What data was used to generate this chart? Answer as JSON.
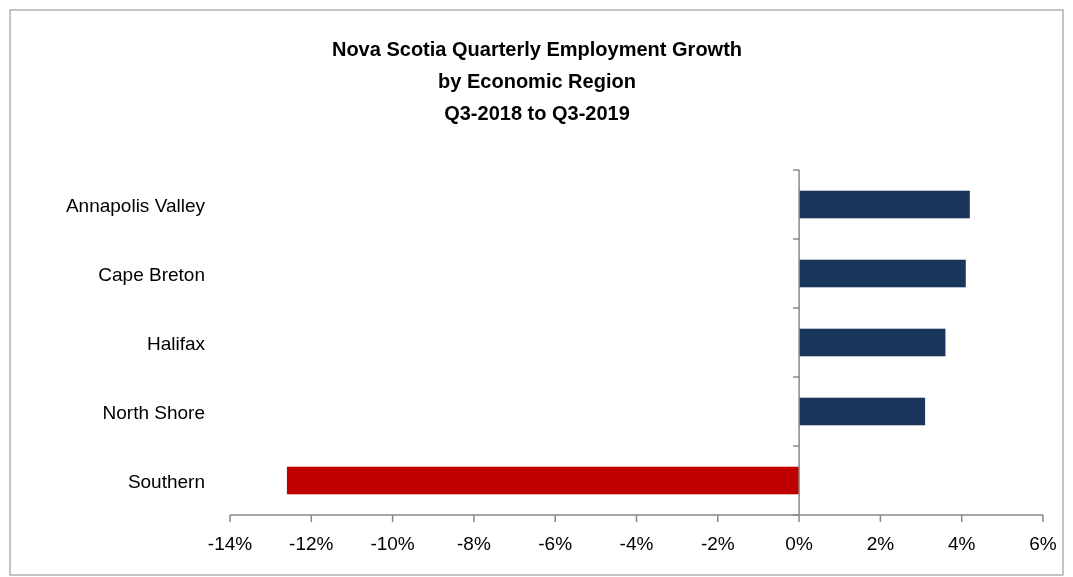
{
  "chart_data": {
    "type": "bar",
    "orientation": "horizontal",
    "title": "Nova Scotia Quarterly Employment Growth\nby Economic Region\nQ3-2018 to Q3-2019",
    "categories": [
      "Annapolis Valley",
      "Cape Breton",
      "Halifax",
      "North Shore",
      "Southern"
    ],
    "values": [
      4.2,
      4.1,
      3.6,
      3.1,
      -12.6
    ],
    "colors": [
      "#1b365d",
      "#1b365d",
      "#1b365d",
      "#1b365d",
      "#c00000"
    ],
    "xlim": [
      -14,
      6
    ],
    "xticks": [
      {
        "value": -14,
        "label": "-14%"
      },
      {
        "value": -12,
        "label": "-12%"
      },
      {
        "value": -10,
        "label": "-10%"
      },
      {
        "value": -8,
        "label": "-8%"
      },
      {
        "value": -6,
        "label": "-6%"
      },
      {
        "value": -4,
        "label": "-4%"
      },
      {
        "value": -2,
        "label": "-2%"
      },
      {
        "value": 0,
        "label": "0%"
      },
      {
        "value": 2,
        "label": "2%"
      },
      {
        "value": 4,
        "label": "4%"
      },
      {
        "value": 6,
        "label": "6%"
      }
    ],
    "tick_labels": "xy"
  }
}
